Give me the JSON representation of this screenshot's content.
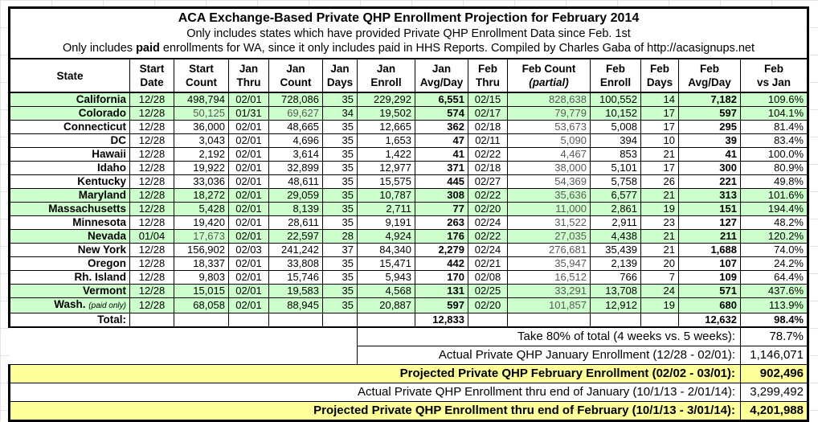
{
  "title": {
    "line1": "ACA Exchange-Based Private QHP Enrollment Projection for February 2014",
    "line2": "Only includes states which have provided Private QHP Enrollment Data since Feb. 1st",
    "line3_pre": "Only includes ",
    "line3_bold": "paid",
    "line3_rest": " enrollments for WA, since it only includes paid in HHS Reports. Compiled by Charles Gaba of http://acasignups.net"
  },
  "colors": {
    "highlight_green": "#ccffcc",
    "highlight_yellow": "#ffff99",
    "estimate_gray_text": "#595959",
    "border": "#000000"
  },
  "columns": [
    {
      "key": "state",
      "l1": "State",
      "l2": ""
    },
    {
      "key": "start-date",
      "l1": "Start",
      "l2": "Date"
    },
    {
      "key": "start-count",
      "l1": "Start",
      "l2": "Count"
    },
    {
      "key": "jan-thru",
      "l1": "Jan",
      "l2": "Thru"
    },
    {
      "key": "jan-count",
      "l1": "Jan",
      "l2": "Count"
    },
    {
      "key": "jan-days",
      "l1": "Jan",
      "l2": "Days"
    },
    {
      "key": "jan-enroll",
      "l1": "Jan",
      "l2": "Enroll"
    },
    {
      "key": "jan-avg-day",
      "l1": "Jan",
      "l2": "Avg/Day"
    },
    {
      "key": "feb-thru",
      "l1": "Feb",
      "l2": "Thru"
    },
    {
      "key": "feb-count-partial",
      "l1": "Feb Count",
      "l2": "(partial)",
      "italic": true
    },
    {
      "key": "feb-enroll",
      "l1": "Feb",
      "l2": "Enroll"
    },
    {
      "key": "feb-days",
      "l1": "Feb",
      "l2": "Days"
    },
    {
      "key": "feb-avg-day",
      "l1": "Feb",
      "l2": "Avg/Day"
    },
    {
      "key": "feb-vs-jan",
      "l1": "Feb",
      "l2": "vs Jan"
    }
  ],
  "rows": [
    {
      "state": "California",
      "note": "",
      "green": true,
      "gray": [
        8
      ],
      "cells": [
        "12/28",
        "498,794",
        "02/01",
        "728,086",
        "35",
        "229,292",
        "6,551",
        "02/15",
        "828,638",
        "100,552",
        "14",
        "7,182",
        "109.6%"
      ]
    },
    {
      "state": "Colorado",
      "note": "",
      "green": true,
      "gray": [
        1,
        3,
        8
      ],
      "cells": [
        "12/28",
        "50,125",
        "01/31",
        "69,627",
        "34",
        "19,502",
        "574",
        "02/17",
        "79,779",
        "10,152",
        "17",
        "597",
        "104.1%"
      ]
    },
    {
      "state": "Connecticut",
      "note": "",
      "green": false,
      "gray": [
        8
      ],
      "cells": [
        "12/28",
        "36,000",
        "02/01",
        "48,665",
        "35",
        "12,665",
        "362",
        "02/18",
        "53,673",
        "5,008",
        "17",
        "295",
        "81.4%"
      ]
    },
    {
      "state": "DC",
      "note": "",
      "green": false,
      "gray": [
        8
      ],
      "cells": [
        "12/28",
        "3,043",
        "02/01",
        "4,696",
        "35",
        "1,653",
        "47",
        "02/11",
        "5,090",
        "394",
        "10",
        "39",
        "83.4%"
      ]
    },
    {
      "state": "Hawaii",
      "note": "",
      "green": false,
      "gray": [
        8
      ],
      "cells": [
        "12/28",
        "2,192",
        "02/01",
        "3,614",
        "35",
        "1,422",
        "41",
        "02/22",
        "4,467",
        "853",
        "21",
        "41",
        "100.0%"
      ]
    },
    {
      "state": "Idaho",
      "note": "",
      "green": false,
      "gray": [
        8
      ],
      "cells": [
        "12/28",
        "19,922",
        "02/01",
        "32,899",
        "35",
        "12,977",
        "371",
        "02/18",
        "38,000",
        "5,101",
        "17",
        "300",
        "80.9%"
      ]
    },
    {
      "state": "Kentucky",
      "note": "",
      "green": false,
      "gray": [
        8
      ],
      "cells": [
        "12/28",
        "33,036",
        "02/01",
        "48,611",
        "35",
        "15,575",
        "445",
        "02/27",
        "54,369",
        "5,758",
        "26",
        "221",
        "49.8%"
      ]
    },
    {
      "state": "Maryland",
      "note": "",
      "green": true,
      "gray": [
        8
      ],
      "cells": [
        "12/28",
        "18,272",
        "02/01",
        "29,059",
        "35",
        "10,787",
        "308",
        "02/22",
        "35,636",
        "6,577",
        "21",
        "313",
        "101.6%"
      ]
    },
    {
      "state": "Massachusetts",
      "note": "",
      "green": true,
      "gray": [
        8
      ],
      "cells": [
        "12/28",
        "5,428",
        "02/01",
        "8,139",
        "35",
        "2,711",
        "77",
        "02/20",
        "11,000",
        "2,861",
        "19",
        "151",
        "194.4%"
      ]
    },
    {
      "state": "Minnesota",
      "note": "",
      "green": false,
      "gray": [
        8
      ],
      "cells": [
        "12/28",
        "19,420",
        "02/01",
        "28,611",
        "35",
        "9,191",
        "263",
        "02/24",
        "31,522",
        "2,911",
        "23",
        "127",
        "48.2%"
      ]
    },
    {
      "state": "Nevada",
      "note": "",
      "green": true,
      "gray": [
        1,
        8
      ],
      "cells": [
        "01/04",
        "17,673",
        "02/01",
        "22,597",
        "28",
        "4,924",
        "176",
        "02/22",
        "27,035",
        "4,438",
        "21",
        "211",
        "120.2%"
      ]
    },
    {
      "state": "New York",
      "note": "",
      "green": false,
      "gray": [
        8
      ],
      "cells": [
        "12/28",
        "156,902",
        "02/03",
        "241,242",
        "37",
        "84,340",
        "2,279",
        "02/24",
        "276,681",
        "35,439",
        "21",
        "1,688",
        "74.0%"
      ]
    },
    {
      "state": "Oregon",
      "note": "",
      "green": false,
      "gray": [
        8
      ],
      "cells": [
        "12/28",
        "18,337",
        "02/01",
        "33,808",
        "35",
        "15,471",
        "442",
        "02/21",
        "35,947",
        "2,139",
        "20",
        "107",
        "24.2%"
      ]
    },
    {
      "state": "Rh. Island",
      "note": "",
      "green": false,
      "gray": [
        8
      ],
      "cells": [
        "12/28",
        "9,803",
        "02/01",
        "15,746",
        "35",
        "5,943",
        "170",
        "02/08",
        "16,512",
        "766",
        "7",
        "109",
        "64.4%"
      ]
    },
    {
      "state": "Vermont",
      "note": "",
      "green": true,
      "gray": [
        8
      ],
      "cells": [
        "12/28",
        "15,015",
        "02/01",
        "19,583",
        "35",
        "4,568",
        "131",
        "02/25",
        "33,291",
        "13,708",
        "24",
        "571",
        "437.6%"
      ]
    },
    {
      "state": "Wash.",
      "note": "(paid only)",
      "green": true,
      "gray": [
        8
      ],
      "cells": [
        "12/28",
        "68,058",
        "02/01",
        "88,945",
        "35",
        "20,887",
        "597",
        "02/20",
        "101,857",
        "12,912",
        "19",
        "680",
        "113.9%"
      ]
    }
  ],
  "total": {
    "label": "Total:",
    "jan_avg": "12,833",
    "feb_avg": "12,632",
    "feb_vs_jan": "98.4%"
  },
  "summary": [
    {
      "label": "Take 80% of total (4 weeks vs. 5 weeks):",
      "value": "78.7%",
      "style": "partial"
    },
    {
      "label": "Actual Private QHP January Enrollment (12/28 - 02/01):",
      "value": "1,146,071",
      "style": "partial"
    },
    {
      "label": "Projected Private QHP February Enrollment (02/02 - 03/01):",
      "value": "902,496",
      "style": "yellow"
    },
    {
      "label": "Actual Private QHP Enrollment thru end of January (10/1/13 - 2/01/14):",
      "value": "3,299,492",
      "style": "plain"
    },
    {
      "label": "Projected Private QHP Enrollment thru end of February (10/1/13 - 3/01/14):",
      "value": "4,201,988",
      "style": "yellow"
    }
  ]
}
